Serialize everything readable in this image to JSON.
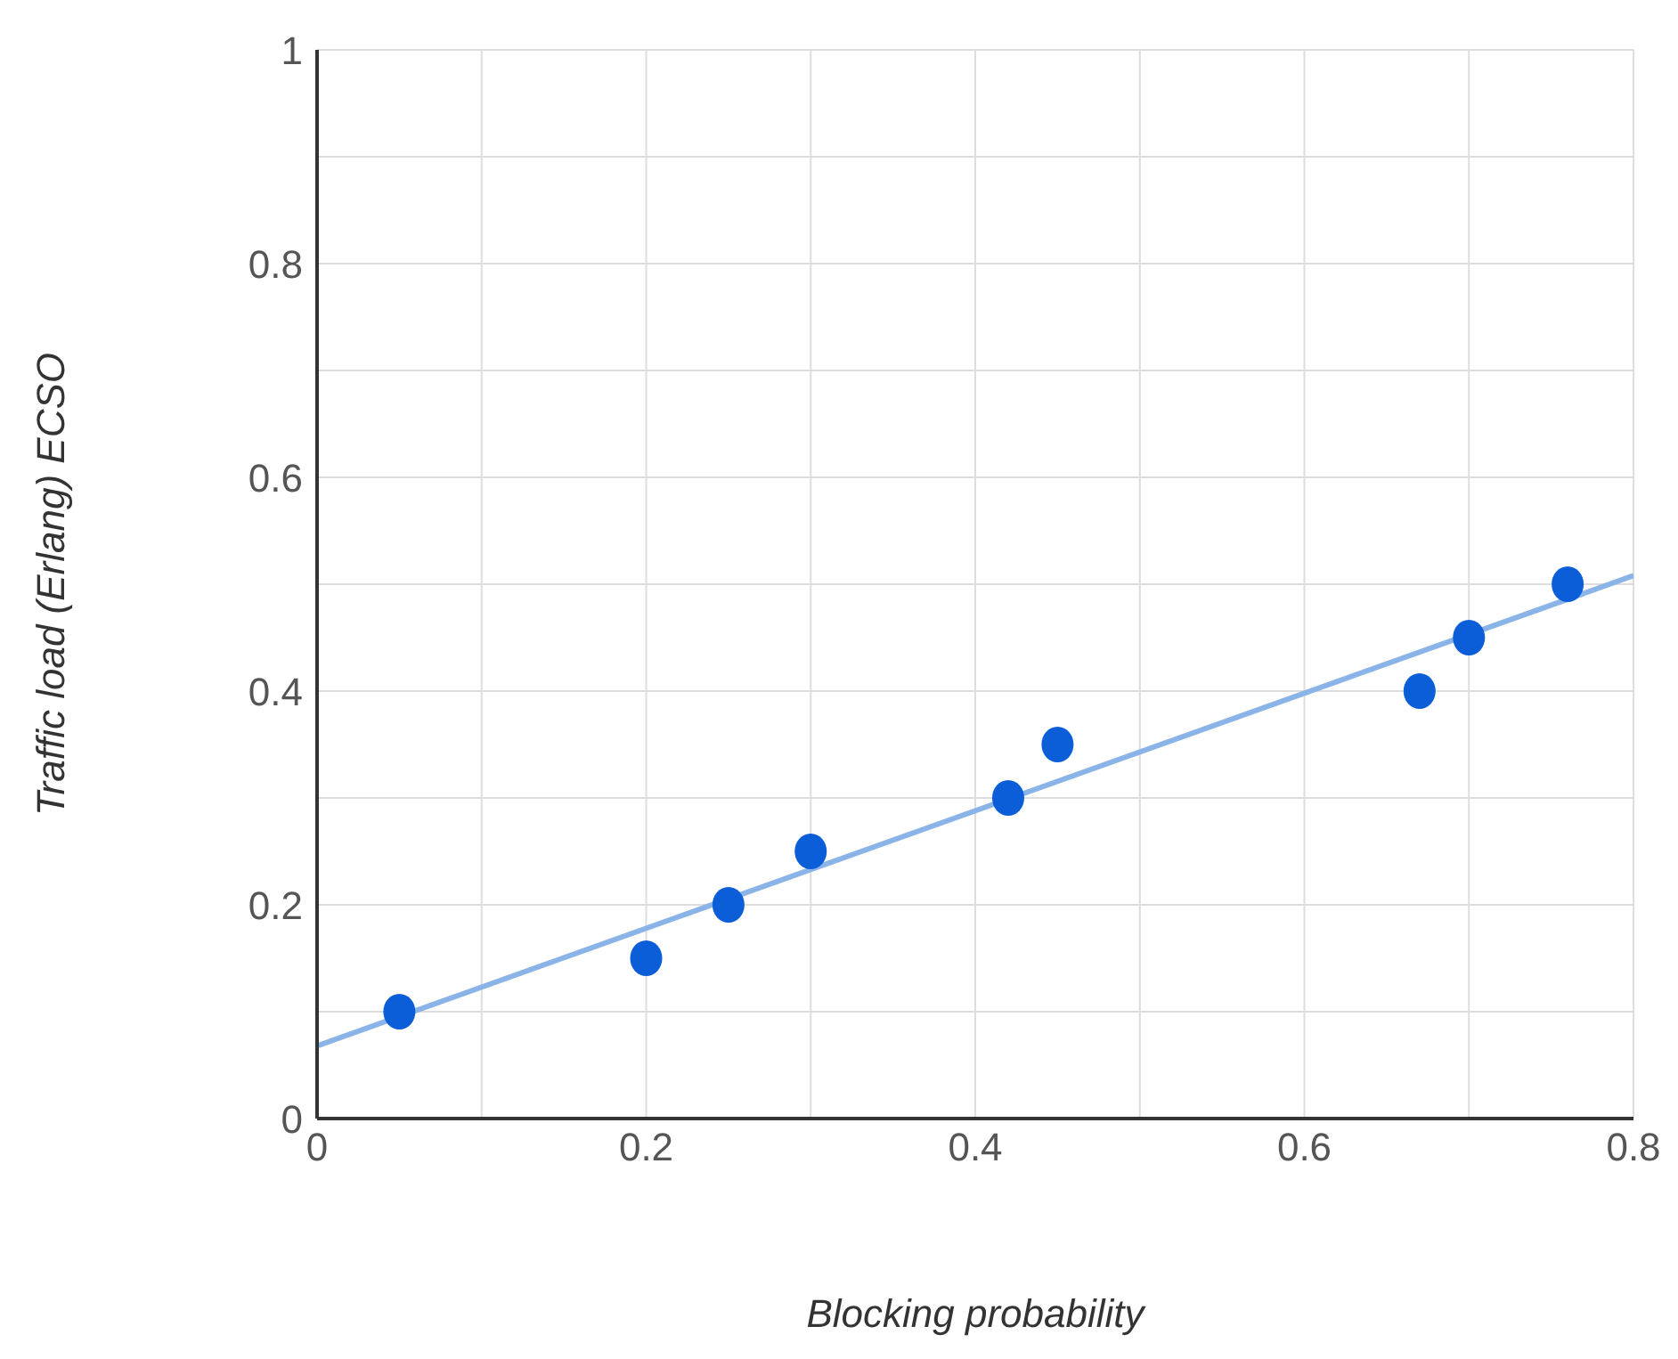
{
  "chart_data": {
    "type": "scatter",
    "xlabel": "Blocking probability",
    "ylabel": "Traffic load (Erlang) ECSO",
    "series": [
      {
        "type": "scatter",
        "color": "#0b5ed7",
        "marker": "circle",
        "x": [
          0.05,
          0.2,
          0.25,
          0.3,
          0.42,
          0.45,
          0.67,
          0.7,
          0.76
        ],
        "values": [
          0.1,
          0.15,
          0.2,
          0.25,
          0.3,
          0.35,
          0.4,
          0.45,
          0.5
        ]
      },
      {
        "type": "line",
        "color": "#8ab4e8",
        "marker": "none",
        "line_style": "solid",
        "x": [
          0,
          0.8
        ],
        "values": [
          0.068,
          0.508
        ]
      }
    ],
    "xlim": [
      0,
      0.8
    ],
    "ylim": [
      0,
      1
    ],
    "xticks": [
      0,
      {
        "value": 0.1,
        "label": null
      },
      0.2,
      {
        "value": 0.3,
        "label": null
      },
      0.4,
      {
        "value": 0.5,
        "label": null
      },
      0.6,
      {
        "value": 0.7,
        "label": null
      },
      0.8
    ],
    "yticks": [
      0,
      {
        "value": 0.1,
        "label": null
      },
      0.2,
      {
        "value": 0.3,
        "label": null
      },
      0.4,
      {
        "value": 0.5,
        "label": null
      },
      0.6,
      {
        "value": 0.7,
        "label": null
      },
      0.8,
      {
        "value": 0.9,
        "label": null
      },
      1
    ],
    "grid": true
  }
}
